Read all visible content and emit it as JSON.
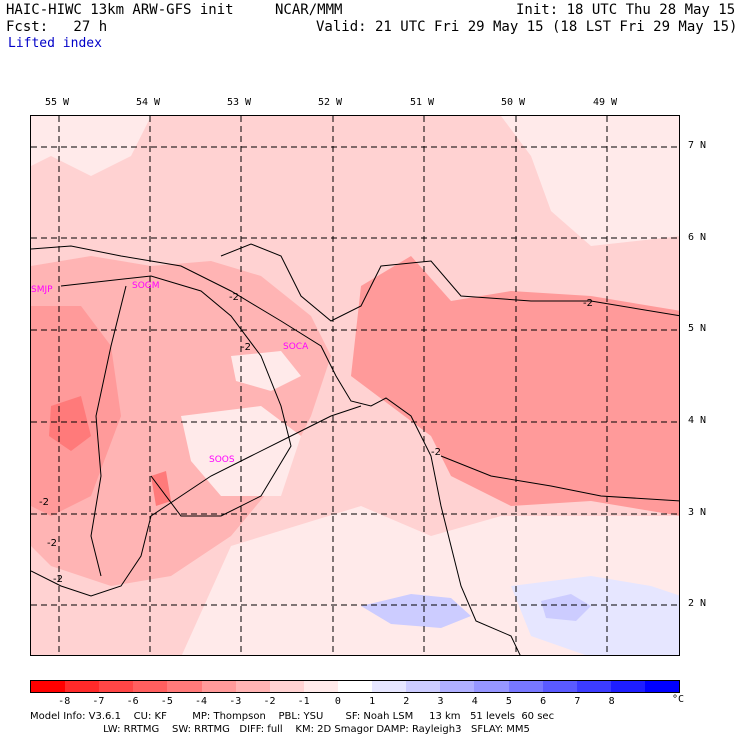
{
  "header": {
    "model": "HAIC-HIWC 13km ARW-GFS init",
    "org": "NCAR/MMM",
    "init": "Init: 18 UTC Thu 28 May 15",
    "fcst": "Fcst:   27 h",
    "valid": "Valid: 21 UTC Fri 29 May 15 (18 LST Fri 29 May 15)",
    "field": "Lifted index"
  },
  "map": {
    "lon_labels": [
      "55 W",
      "54 W",
      "53 W",
      "52 W",
      "51 W",
      "50 W",
      "49 W"
    ],
    "lat_labels": [
      "7 N",
      "6 N",
      "5 N",
      "4 N",
      "3 N",
      "2 N"
    ],
    "stations": [
      "SMJP",
      "SOGM",
      "SOCA",
      "SOOS"
    ],
    "contour_labels": [
      "-2",
      "-2",
      "-2",
      "-2",
      "-2",
      "-2",
      "-2"
    ]
  },
  "colorbar": {
    "colors": [
      "#ff0000",
      "#ff2a2a",
      "#ff4646",
      "#ff5f5f",
      "#ff7a7a",
      "#ff9a9a",
      "#ffb4b4",
      "#ffd2d2",
      "#ffeaea",
      "#ffffff",
      "#e6e6ff",
      "#ccccff",
      "#b0b0ff",
      "#9696ff",
      "#7878ff",
      "#5a5aff",
      "#3c3cff",
      "#1e1eff",
      "#0000ff"
    ],
    "ticks": [
      "-8",
      "-7",
      "-6",
      "-5",
      "-4",
      "-3",
      "-2",
      "-1",
      "0",
      "1",
      "2",
      "3",
      "4",
      "5",
      "6",
      "7",
      "8"
    ],
    "unit": "°C"
  },
  "footer": {
    "line1": "Model Info: V3.6.1    CU: KF        MP: Thompson    PBL: YSU       SF: Noah LSM     13 km   51 levels  60 sec",
    "line2": "                       LW: RRTMG    SW: RRTMG   DIFF: full    KM: 2D Smagor DAMP: Rayleigh3   SFLAY: MM5"
  }
}
